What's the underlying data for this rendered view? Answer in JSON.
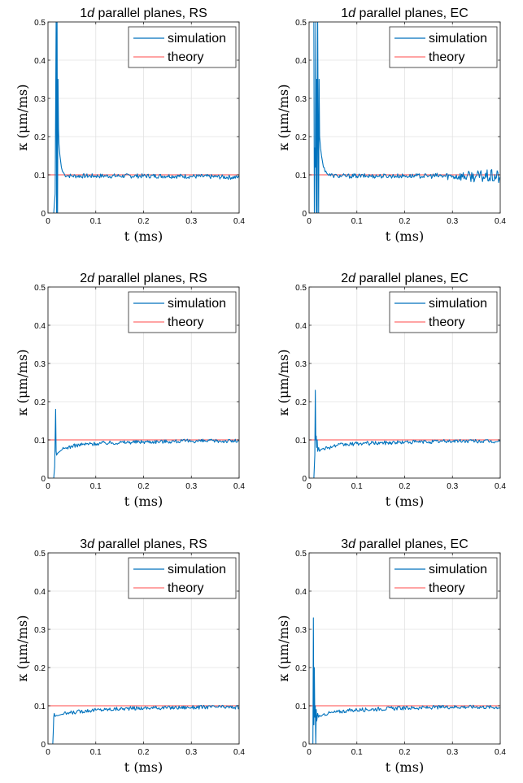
{
  "legend": {
    "simulation": "simulation",
    "theory": "theory"
  },
  "axis_labels": {
    "x": "t (ms)",
    "y": "κ (μm/ms)"
  },
  "colors": {
    "simulation": "#0072BD",
    "theory": "#FF6E6E",
    "grid": "#E2E2E2",
    "axis": "#262626"
  },
  "chart_data": [
    {
      "type": "line",
      "title": "1d parallel planes, RS",
      "title_parts": {
        "num": "1",
        "d": "d",
        "rest": " parallel planes, RS"
      },
      "xlabel": "t (ms)",
      "ylabel": "κ (μm/ms)",
      "xlim": [
        0,
        0.4
      ],
      "ylim": [
        0,
        0.5
      ],
      "xticks": [
        0,
        0.1,
        0.2,
        0.3,
        0.4
      ],
      "yticks": [
        0,
        0.1,
        0.2,
        0.3,
        0.4,
        0.5
      ],
      "grid": true,
      "legend_position": "top-right",
      "series": [
        {
          "name": "simulation",
          "x": [
            0.012,
            0.015,
            0.017,
            0.018,
            0.019,
            0.02,
            0.021,
            0.022,
            0.023,
            0.025,
            0.028,
            0.03,
            0.035,
            0.04,
            0.05,
            0.06,
            0.08,
            0.1,
            0.12,
            0.15,
            0.2,
            0.25,
            0.3,
            0.35,
            0.4
          ],
          "y": [
            0.0,
            0.05,
            0.5,
            0.0,
            0.5,
            0.0,
            0.35,
            0.22,
            0.18,
            0.15,
            0.12,
            0.11,
            0.1,
            0.098,
            0.097,
            0.097,
            0.097,
            0.097,
            0.097,
            0.097,
            0.097,
            0.097,
            0.096,
            0.095,
            0.093
          ],
          "noise": 0.006
        },
        {
          "name": "theory",
          "x": [
            0,
            0.4
          ],
          "y": [
            0.1,
            0.1
          ]
        }
      ]
    },
    {
      "type": "line",
      "title": "1d parallel planes, EC",
      "title_parts": {
        "num": "1",
        "d": "d",
        "rest": " parallel planes, EC"
      },
      "xlabel": "t (ms)",
      "ylabel": "κ (μm/ms)",
      "xlim": [
        0,
        0.4
      ],
      "ylim": [
        0,
        0.5
      ],
      "xticks": [
        0,
        0.1,
        0.2,
        0.3,
        0.4
      ],
      "yticks": [
        0,
        0.1,
        0.2,
        0.3,
        0.4,
        0.5
      ],
      "grid": true,
      "legend_position": "top-right",
      "series": [
        {
          "name": "simulation",
          "x": [
            0.01,
            0.011,
            0.012,
            0.013,
            0.014,
            0.015,
            0.016,
            0.017,
            0.018,
            0.019,
            0.02,
            0.021,
            0.022,
            0.024,
            0.026,
            0.03,
            0.035,
            0.04,
            0.05,
            0.06,
            0.08,
            0.1,
            0.15,
            0.2,
            0.25,
            0.3,
            0.35,
            0.4
          ],
          "y": [
            0.5,
            0.0,
            0.17,
            0.12,
            0.5,
            0.0,
            0.35,
            0.0,
            0.5,
            0.22,
            0.0,
            0.35,
            0.2,
            0.17,
            0.15,
            0.12,
            0.11,
            0.1,
            0.098,
            0.097,
            0.097,
            0.097,
            0.097,
            0.097,
            0.097,
            0.097,
            0.096,
            0.095
          ],
          "noise": 0.006,
          "noise_growth": 0.014
        },
        {
          "name": "theory",
          "x": [
            0,
            0.4
          ],
          "y": [
            0.1,
            0.1
          ]
        }
      ]
    },
    {
      "type": "line",
      "title": "2d parallel planes, RS",
      "title_parts": {
        "num": "2",
        "d": "d",
        "rest": " parallel planes, RS"
      },
      "xlabel": "t (ms)",
      "ylabel": "κ (μm/ms)",
      "xlim": [
        0,
        0.4
      ],
      "ylim": [
        0,
        0.5
      ],
      "xticks": [
        0,
        0.1,
        0.2,
        0.3,
        0.4
      ],
      "yticks": [
        0,
        0.1,
        0.2,
        0.3,
        0.4,
        0.5
      ],
      "grid": true,
      "legend_position": "top-right",
      "series": [
        {
          "name": "simulation",
          "x": [
            0.012,
            0.014,
            0.016,
            0.017,
            0.018,
            0.02,
            0.025,
            0.03,
            0.04,
            0.05,
            0.06,
            0.08,
            0.1,
            0.12,
            0.15,
            0.2,
            0.25,
            0.3,
            0.35,
            0.4
          ],
          "y": [
            0.0,
            0.03,
            0.18,
            0.07,
            0.06,
            0.065,
            0.07,
            0.075,
            0.08,
            0.083,
            0.086,
            0.089,
            0.09,
            0.092,
            0.093,
            0.095,
            0.096,
            0.097,
            0.097,
            0.097
          ],
          "noise": 0.005
        },
        {
          "name": "theory",
          "x": [
            0,
            0.4
          ],
          "y": [
            0.1,
            0.1
          ]
        }
      ]
    },
    {
      "type": "line",
      "title": "2d parallel planes, EC",
      "title_parts": {
        "num": "2",
        "d": "d",
        "rest": " parallel planes, EC"
      },
      "xlabel": "t (ms)",
      "ylabel": "κ (μm/ms)",
      "xlim": [
        0,
        0.4
      ],
      "ylim": [
        0,
        0.5
      ],
      "xticks": [
        0,
        0.1,
        0.2,
        0.3,
        0.4
      ],
      "yticks": [
        0,
        0.1,
        0.2,
        0.3,
        0.4,
        0.5
      ],
      "grid": true,
      "legend_position": "top-right",
      "series": [
        {
          "name": "simulation",
          "x": [
            0.01,
            0.012,
            0.013,
            0.014,
            0.015,
            0.016,
            0.017,
            0.018,
            0.02,
            0.022,
            0.025,
            0.03,
            0.04,
            0.05,
            0.06,
            0.08,
            0.1,
            0.12,
            0.15,
            0.2,
            0.25,
            0.3,
            0.35,
            0.4
          ],
          "y": [
            0.0,
            0.06,
            0.23,
            0.1,
            0.11,
            0.08,
            0.1,
            0.07,
            0.08,
            0.07,
            0.075,
            0.078,
            0.08,
            0.083,
            0.086,
            0.088,
            0.09,
            0.091,
            0.092,
            0.094,
            0.095,
            0.097,
            0.097,
            0.095
          ],
          "noise": 0.005
        },
        {
          "name": "theory",
          "x": [
            0,
            0.4
          ],
          "y": [
            0.1,
            0.1
          ]
        }
      ]
    },
    {
      "type": "line",
      "title": "3d parallel planes, RS",
      "title_parts": {
        "num": "3",
        "d": "d",
        "rest": " parallel planes, RS"
      },
      "xlabel": "t (ms)",
      "ylabel": "κ (μm/ms)",
      "xlim": [
        0,
        0.4
      ],
      "ylim": [
        0,
        0.5
      ],
      "xticks": [
        0,
        0.1,
        0.2,
        0.3,
        0.4
      ],
      "yticks": [
        0,
        0.1,
        0.2,
        0.3,
        0.4,
        0.5
      ],
      "grid": true,
      "legend_position": "top-right",
      "series": [
        {
          "name": "simulation",
          "x": [
            0.01,
            0.011,
            0.012,
            0.013,
            0.015,
            0.018,
            0.02,
            0.025,
            0.03,
            0.04,
            0.05,
            0.06,
            0.08,
            0.1,
            0.12,
            0.15,
            0.2,
            0.25,
            0.3,
            0.35,
            0.4
          ],
          "y": [
            0.0,
            0.03,
            0.07,
            0.08,
            0.072,
            0.075,
            0.074,
            0.076,
            0.078,
            0.08,
            0.082,
            0.084,
            0.087,
            0.089,
            0.09,
            0.092,
            0.094,
            0.095,
            0.096,
            0.097,
            0.096
          ],
          "noise": 0.005
        },
        {
          "name": "theory",
          "x": [
            0,
            0.4
          ],
          "y": [
            0.1,
            0.1
          ]
        }
      ]
    },
    {
      "type": "line",
      "title": "3d parallel planes, EC",
      "title_parts": {
        "num": "3",
        "d": "d",
        "rest": " parallel planes, EC"
      },
      "xlabel": "t (ms)",
      "ylabel": "κ (μm/ms)",
      "xlim": [
        0,
        0.4
      ],
      "ylim": [
        0,
        0.5
      ],
      "xticks": [
        0,
        0.1,
        0.2,
        0.3,
        0.4
      ],
      "yticks": [
        0,
        0.1,
        0.2,
        0.3,
        0.4,
        0.5
      ],
      "grid": true,
      "legend_position": "top-right",
      "series": [
        {
          "name": "simulation",
          "x": [
            0.008,
            0.009,
            0.01,
            0.011,
            0.012,
            0.013,
            0.014,
            0.015,
            0.016,
            0.018,
            0.02,
            0.022,
            0.025,
            0.03,
            0.04,
            0.05,
            0.06,
            0.08,
            0.1,
            0.12,
            0.15,
            0.2,
            0.25,
            0.3,
            0.35,
            0.4
          ],
          "y": [
            0.0,
            0.33,
            0.05,
            0.2,
            0.07,
            0.1,
            0.0,
            0.09,
            0.06,
            0.08,
            0.07,
            0.075,
            0.072,
            0.078,
            0.08,
            0.082,
            0.084,
            0.087,
            0.089,
            0.09,
            0.092,
            0.094,
            0.095,
            0.097,
            0.097,
            0.096
          ],
          "noise": 0.005
        },
        {
          "name": "theory",
          "x": [
            0,
            0.4
          ],
          "y": [
            0.1,
            0.1
          ]
        }
      ]
    }
  ]
}
